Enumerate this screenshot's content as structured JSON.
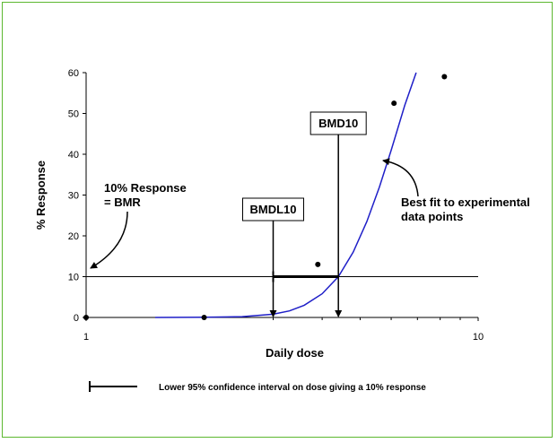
{
  "chart_data": {
    "type": "scatter",
    "xlabel": "Daily dose",
    "ylabel": "% Response",
    "xscale": "log",
    "xlim": [
      1,
      10
    ],
    "ylim": [
      0,
      60
    ],
    "x_ticks": [
      1,
      10
    ],
    "y_ticks": [
      0,
      10,
      20,
      30,
      40,
      50,
      60
    ],
    "grid": false,
    "points": [
      {
        "x": 1.0,
        "y": 0
      },
      {
        "x": 2.0,
        "y": 0
      },
      {
        "x": 3.9,
        "y": 13
      },
      {
        "x": 6.1,
        "y": 52.5
      },
      {
        "x": 8.2,
        "y": 59
      }
    ],
    "fit_curve": {
      "color": "#1f1fc8",
      "x": [
        1.5,
        2.0,
        2.5,
        3.0,
        3.3,
        3.6,
        4.0,
        4.4,
        4.8,
        5.2,
        5.6,
        6.0,
        6.5,
        6.95
      ],
      "y": [
        0,
        0.05,
        0.2,
        0.8,
        1.6,
        3.0,
        5.8,
        10.0,
        16.0,
        23.5,
        32.0,
        41.0,
        52.0,
        60.0
      ]
    },
    "bmr_line_y": 10,
    "bmd10": 4.4,
    "bmdl10": 3.0,
    "annotations": {
      "bmr": [
        "10% Response",
        "= BMR"
      ],
      "bmd10": "BMD10",
      "bmdl10": "BMDL10",
      "best_fit": [
        "Best fit to experimental",
        "data points"
      ]
    },
    "legend": "Lower 95% confidence interval on dose giving a 10% response"
  }
}
